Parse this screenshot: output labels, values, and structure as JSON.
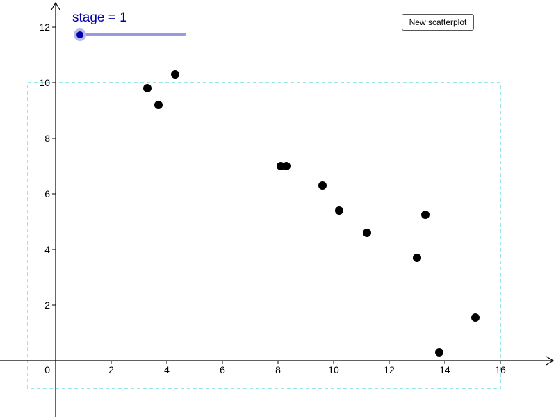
{
  "slider": {
    "label": "stage = 1",
    "value": 1
  },
  "buttons": {
    "new_scatterplot": "New scatterplot"
  },
  "colors": {
    "slider_accent": "#0000aa",
    "slider_track": "#9999e0",
    "box": "#33cccc",
    "points": "#000000"
  },
  "chart_data": {
    "type": "scatter",
    "title": "",
    "xlabel": "",
    "ylabel": "",
    "xlim": [
      -2,
      18
    ],
    "ylim": [
      -2,
      13
    ],
    "x_ticks": [
      "2",
      "4",
      "6",
      "8",
      "10",
      "12",
      "14",
      "16"
    ],
    "y_ticks": [
      "2",
      "4",
      "6",
      "8",
      "10",
      "12"
    ],
    "origin_label": "0",
    "grid": false,
    "bounding_box": {
      "x": [
        -1,
        16
      ],
      "y": [
        -1,
        10
      ],
      "style": "dashed"
    },
    "points": [
      {
        "x": 3.3,
        "y": 9.8
      },
      {
        "x": 3.7,
        "y": 9.2
      },
      {
        "x": 4.3,
        "y": 10.3
      },
      {
        "x": 8.1,
        "y": 7.0
      },
      {
        "x": 8.3,
        "y": 7.0
      },
      {
        "x": 9.6,
        "y": 6.3
      },
      {
        "x": 10.2,
        "y": 5.4
      },
      {
        "x": 11.2,
        "y": 4.6
      },
      {
        "x": 13.0,
        "y": 3.7
      },
      {
        "x": 13.3,
        "y": 5.25
      },
      {
        "x": 13.8,
        "y": 0.3
      },
      {
        "x": 15.1,
        "y": 1.55
      }
    ]
  }
}
